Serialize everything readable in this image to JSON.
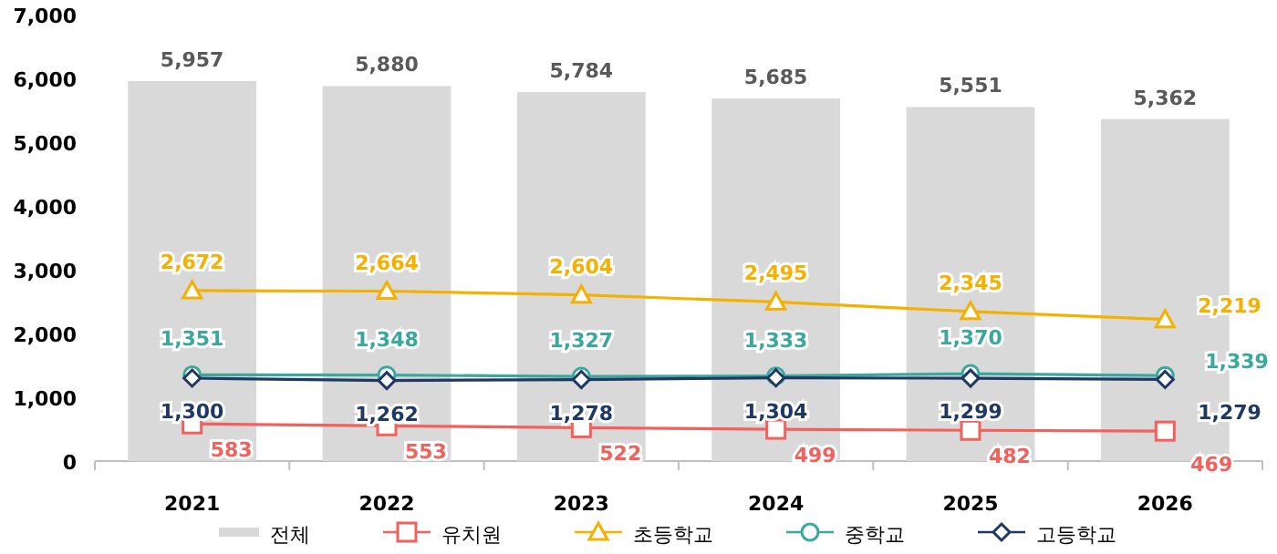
{
  "chart_data": {
    "type": "bar",
    "categories": [
      "2021",
      "2022",
      "2023",
      "2024",
      "2025",
      "2026"
    ],
    "ylim": [
      0,
      7000
    ],
    "yticks": [
      {
        "value": 0,
        "label": "0"
      },
      {
        "value": 1000,
        "label": "1,000"
      },
      {
        "value": 2000,
        "label": "2,000"
      },
      {
        "value": 3000,
        "label": "3,000"
      },
      {
        "value": 4000,
        "label": "4,000"
      },
      {
        "value": 5000,
        "label": "5,000"
      },
      {
        "value": 6000,
        "label": "6,000"
      },
      {
        "value": 7000,
        "label": "7,000"
      }
    ],
    "grid": false,
    "legend": "bottom",
    "series": [
      {
        "name": "전체",
        "color": "#d9d9d9",
        "values": [
          5957,
          5880,
          5784,
          5685,
          5551,
          5362
        ],
        "value_labels": [
          "5,957",
          "5,880",
          "5,784",
          "5,685",
          "5,551",
          "5,362"
        ]
      },
      {
        "name": "유치원",
        "type": "line",
        "marker": "square",
        "color": "#f4605c",
        "values": [
          583,
          553,
          522,
          499,
          482,
          469
        ],
        "value_labels": [
          "583",
          "553",
          "522",
          "499",
          "482",
          "469"
        ]
      },
      {
        "name": "초등학교",
        "type": "line",
        "marker": "triangle",
        "color": "#f5b000",
        "values": [
          2672,
          2664,
          2604,
          2495,
          2345,
          2219
        ],
        "value_labels": [
          "2,672",
          "2,664",
          "2,604",
          "2,495",
          "2,345",
          "2,219"
        ]
      },
      {
        "name": "중학교",
        "type": "line",
        "marker": "circle",
        "color": "#3aa89c",
        "values": [
          1351,
          1348,
          1327,
          1333,
          1370,
          1339
        ],
        "value_labels": [
          "1,351",
          "1,348",
          "1,327",
          "1,333",
          "1,370",
          "1,339"
        ]
      },
      {
        "name": "고등학교",
        "type": "line",
        "marker": "diamond",
        "color": "#1f3864",
        "values": [
          1300,
          1262,
          1278,
          1304,
          1299,
          1279
        ],
        "value_labels": [
          "1,300",
          "1,262",
          "1,278",
          "1,304",
          "1,299",
          "1,279"
        ]
      }
    ]
  }
}
